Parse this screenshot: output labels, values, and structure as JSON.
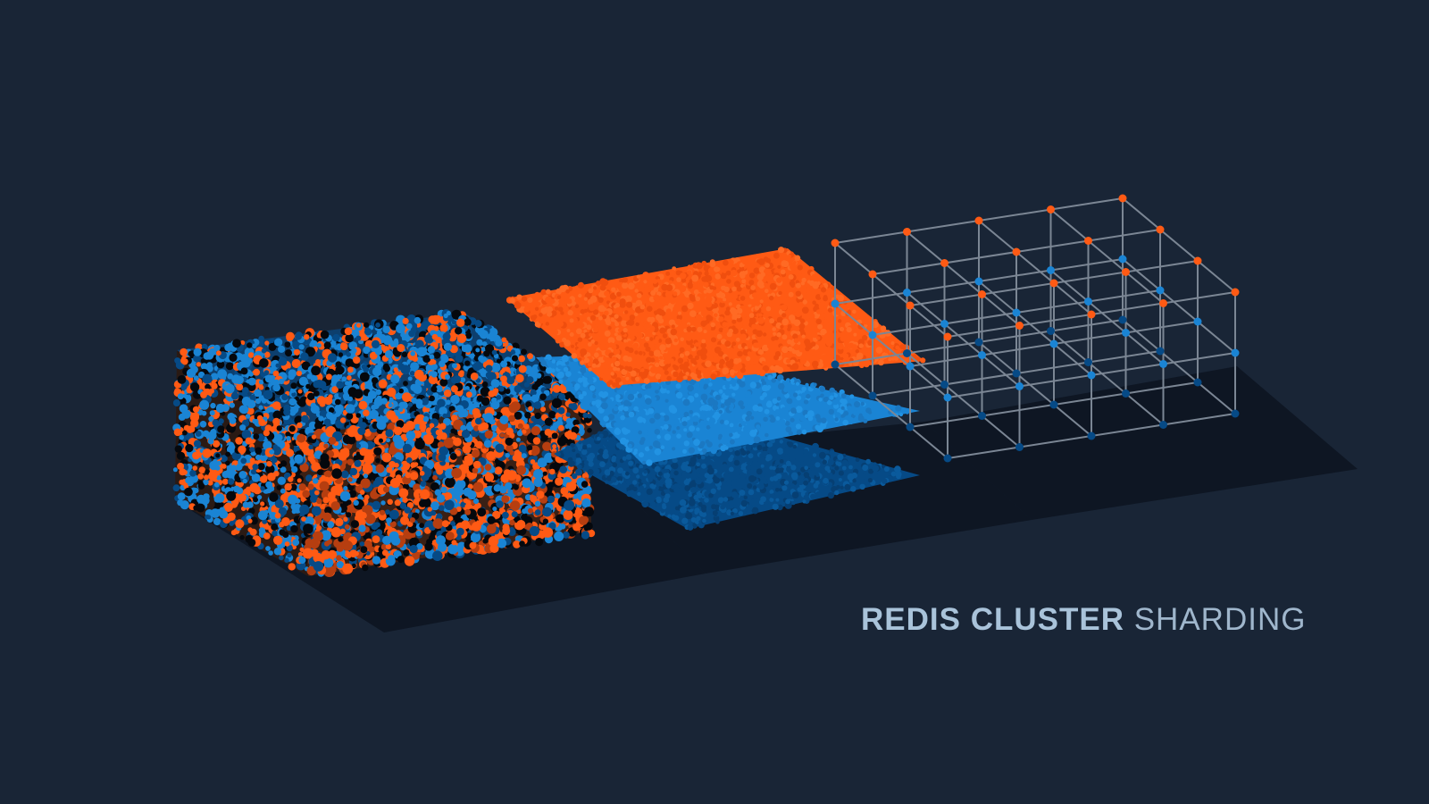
{
  "caption": {
    "bold_text": "REDIS CLUSTER",
    "light_text": "SHARDING"
  },
  "colors": {
    "background": "#192536",
    "shadow": "#0e1623",
    "orange": "#ff5a14",
    "blue": "#1a84d4",
    "dark_blue": "#064a86",
    "black": "#05080d",
    "grid_line": "#7b8694",
    "caption_text": "#a9c3da"
  },
  "illustration": {
    "panels": [
      {
        "name": "mixed-data-cube",
        "colors": [
          "orange",
          "blue",
          "dark_blue",
          "black"
        ]
      },
      {
        "name": "separated-layers",
        "layers": [
          "orange",
          "blue",
          "dark_blue"
        ]
      },
      {
        "name": "shard-grid",
        "node_colors": [
          "orange",
          "blue",
          "dark_blue"
        ]
      }
    ]
  }
}
